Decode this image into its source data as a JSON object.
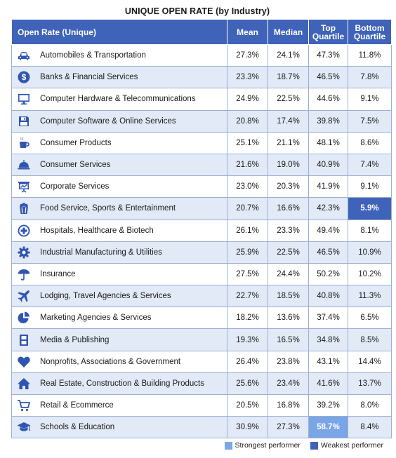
{
  "chart_data": {
    "type": "table",
    "title": "UNIQUE OPEN RATE (by Industry)",
    "columns": [
      "Open Rate (Unique)",
      "Mean",
      "Median",
      "Top Quartile",
      "Bottom Quartile"
    ],
    "rows": [
      {
        "icon": "car-icon",
        "industry": "Automobiles & Transportation",
        "mean": "27.3%",
        "median": "24.1%",
        "top": "47.3%",
        "bottom": "11.8%"
      },
      {
        "icon": "dollar-icon",
        "industry": "Banks & Financial Services",
        "mean": "23.3%",
        "median": "18.7%",
        "top": "46.5%",
        "bottom": "7.8%"
      },
      {
        "icon": "monitor-icon",
        "industry": "Computer Hardware & Telecommunications",
        "mean": "24.9%",
        "median": "22.5%",
        "top": "44.6%",
        "bottom": "9.1%"
      },
      {
        "icon": "floppy-disk-icon",
        "industry": "Computer Software & Online Services",
        "mean": "20.8%",
        "median": "17.4%",
        "top": "39.8%",
        "bottom": "7.5%"
      },
      {
        "icon": "coffee-cup-icon",
        "industry": "Consumer Products",
        "mean": "25.1%",
        "median": "21.1%",
        "top": "48.1%",
        "bottom": "8.6%"
      },
      {
        "icon": "service-bell-icon",
        "industry": "Consumer Services",
        "mean": "21.6%",
        "median": "19.0%",
        "top": "40.9%",
        "bottom": "7.4%"
      },
      {
        "icon": "presentation-board-icon",
        "industry": "Corporate Services",
        "mean": "23.0%",
        "median": "20.3%",
        "top": "41.9%",
        "bottom": "9.1%"
      },
      {
        "icon": "popcorn-icon",
        "industry": "Food Service, Sports & Entertainment",
        "mean": "20.7%",
        "median": "16.6%",
        "top": "42.3%",
        "bottom": "5.9%"
      },
      {
        "icon": "medical-cross-icon",
        "industry": "Hospitals, Healthcare & Biotech",
        "mean": "26.1%",
        "median": "23.3%",
        "top": "49.4%",
        "bottom": "8.1%"
      },
      {
        "icon": "gear-icon",
        "industry": "Industrial Manufacturing & Utilities",
        "mean": "25.9%",
        "median": "22.5%",
        "top": "46.5%",
        "bottom": "10.9%"
      },
      {
        "icon": "umbrella-icon",
        "industry": "Insurance",
        "mean": "27.5%",
        "median": "24.4%",
        "top": "50.2%",
        "bottom": "10.2%"
      },
      {
        "icon": "airplane-icon",
        "industry": "Lodging, Travel Agencies & Services",
        "mean": "22.7%",
        "median": "18.5%",
        "top": "40.8%",
        "bottom": "11.3%"
      },
      {
        "icon": "pie-chart-icon",
        "industry": "Marketing Agencies & Services",
        "mean": "18.2%",
        "median": "13.6%",
        "top": "37.4%",
        "bottom": "6.5%"
      },
      {
        "icon": "film-strip-icon",
        "industry": "Media & Publishing",
        "mean": "19.3%",
        "median": "16.5%",
        "top": "34.8%",
        "bottom": "8.5%"
      },
      {
        "icon": "heart-icon",
        "industry": "Nonprofits, Associations & Government",
        "mean": "26.4%",
        "median": "23.8%",
        "top": "43.1%",
        "bottom": "14.4%"
      },
      {
        "icon": "house-icon",
        "industry": "Real Estate, Construction & Building Products",
        "mean": "25.6%",
        "median": "23.4%",
        "top": "41.6%",
        "bottom": "13.7%"
      },
      {
        "icon": "shopping-cart-icon",
        "industry": "Retail & Ecommerce",
        "mean": "20.5%",
        "median": "16.8%",
        "top": "39.2%",
        "bottom": "8.0%"
      },
      {
        "icon": "graduation-cap-icon",
        "industry": "Schools & Education",
        "mean": "30.9%",
        "median": "27.3%",
        "top": "58.7%",
        "bottom": "8.4%"
      }
    ],
    "highlights": {
      "strongest": {
        "row": 17,
        "column": "top"
      },
      "weakest": {
        "row": 7,
        "column": "bottom"
      }
    },
    "legend": [
      {
        "label": "Strongest performer",
        "color": "#7aa5e6"
      },
      {
        "label": "Weakest performer",
        "color": "#3e63b8"
      }
    ]
  },
  "colors": {
    "header": "#3e63b8",
    "icon": "#2f56b0",
    "stripe": "#e2eaf7",
    "border": "#9bb0d2"
  }
}
